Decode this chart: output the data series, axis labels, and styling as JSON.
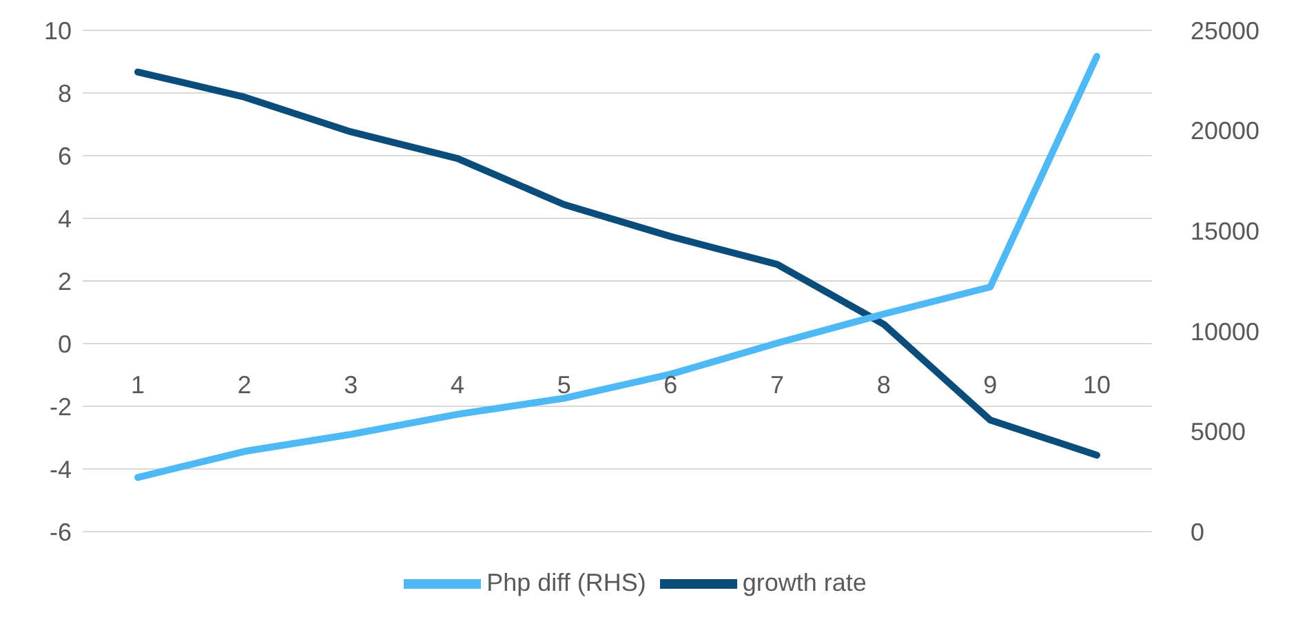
{
  "chart_data": {
    "type": "line",
    "categories": [
      "1",
      "2",
      "3",
      "4",
      "5",
      "6",
      "7",
      "8",
      "9",
      "10"
    ],
    "series": [
      {
        "name": "growth rate",
        "color": "#0b4d7a",
        "values": [
          8.67,
          7.87,
          6.76,
          5.91,
          4.44,
          3.42,
          2.53,
          0.62,
          -2.44,
          -3.56
        ]
      },
      {
        "name": "Php diff (RHS)",
        "color": "#4fb9f5",
        "axis": "y2",
        "values": [
          2700,
          4000,
          4850,
          5850,
          6650,
          7850,
          9400,
          10850,
          12200,
          23700
        ]
      }
    ],
    "ylim": [
      -6,
      10
    ],
    "yticks": [
      -6,
      -4,
      -2,
      0,
      2,
      4,
      6,
      8,
      10
    ],
    "y2lim": [
      0,
      25000
    ],
    "y2ticks": [
      0,
      5000,
      10000,
      15000,
      20000,
      25000
    ],
    "grid": "y",
    "legend": "bottom",
    "marker": "none",
    "line_style": "solid"
  }
}
